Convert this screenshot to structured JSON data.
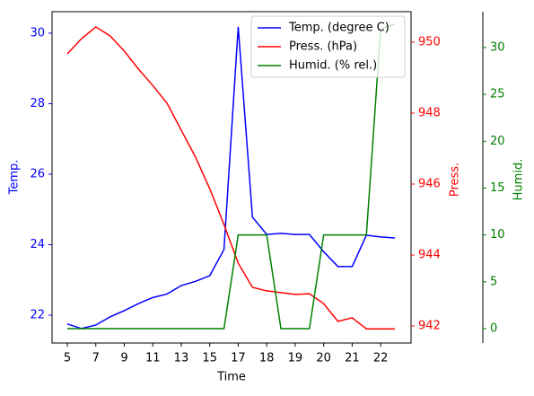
{
  "chart_data": {
    "type": "line",
    "x_label": "Time",
    "y_label": "Temp.",
    "y2_label": "Press.",
    "y3_label": "Humid.",
    "categories": [
      "5",
      null,
      "7",
      null,
      "9",
      null,
      "11",
      null,
      "13",
      null,
      "15",
      null,
      "17",
      null,
      "18",
      null,
      "19",
      null,
      "20",
      null,
      "21",
      null,
      "22",
      null
    ],
    "series": [
      {
        "name": "Temp. (degree C)",
        "color": "#0000ff",
        "axis": "y",
        "values": [
          21.75,
          21.62,
          21.72,
          21.95,
          22.13,
          22.33,
          22.5,
          22.6,
          22.84,
          22.96,
          23.12,
          23.86,
          30.18,
          24.78,
          24.29,
          24.32,
          24.29,
          24.29,
          23.8,
          23.38,
          23.38,
          24.27,
          24.22,
          24.19
        ]
      },
      {
        "name": "Press. (hPa)",
        "color": "#ff0000",
        "axis": "y2",
        "values": [
          949.67,
          950.1,
          950.43,
          950.18,
          949.75,
          949.24,
          948.78,
          948.28,
          947.52,
          946.76,
          945.87,
          944.86,
          943.77,
          943.09,
          942.99,
          942.94,
          942.89,
          942.91,
          942.63,
          942.13,
          942.23,
          941.92,
          941.92,
          941.92
        ]
      },
      {
        "name": "Humid. (% rel.)",
        "color": "#008000",
        "axis": "y3",
        "values": [
          0,
          0,
          0,
          0,
          0,
          0,
          0,
          0,
          0,
          0,
          0,
          0,
          10,
          10,
          10,
          0,
          0,
          0,
          10,
          10,
          10,
          10,
          32,
          32.5
        ]
      }
    ],
    "ylim": [
      21.21,
      30.61
    ],
    "yticks": [
      22,
      24,
      26,
      28,
      30
    ],
    "y2lim": [
      941.52,
      950.86
    ],
    "y2ticks": [
      942,
      944,
      946,
      948,
      950
    ],
    "y3lim": [
      -1.53,
      33.83
    ],
    "y3ticks": [
      0,
      5,
      10,
      15,
      20,
      25,
      30
    ],
    "legend": "upper right"
  }
}
